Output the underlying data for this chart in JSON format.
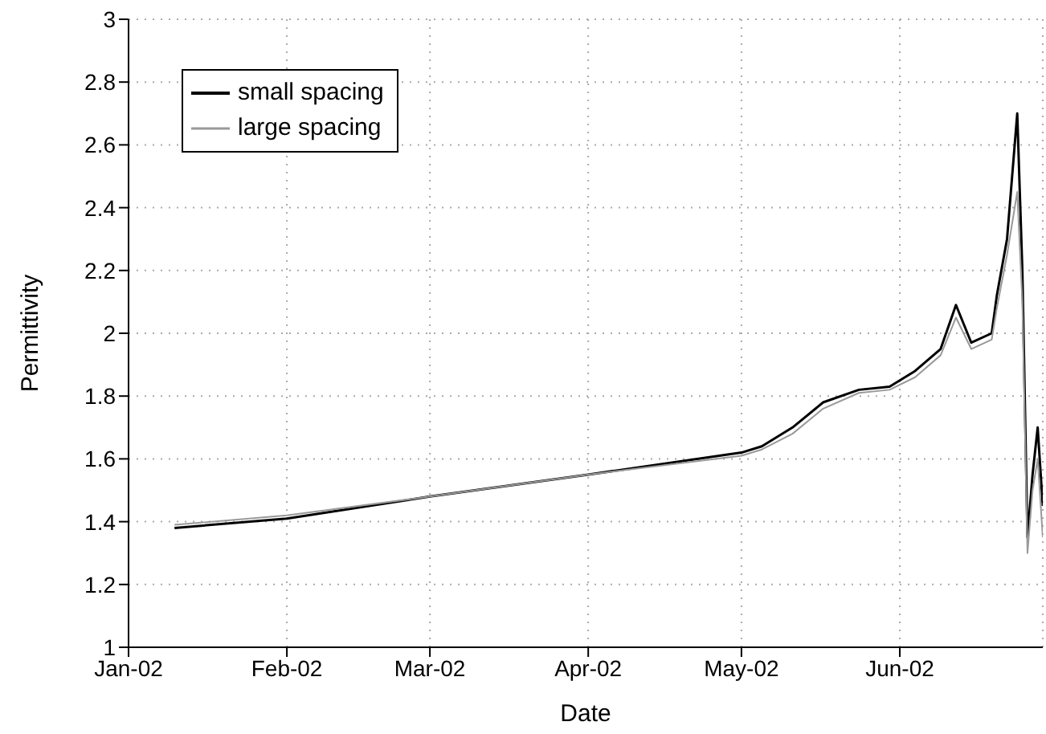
{
  "chart_data": {
    "type": "line",
    "xlabel": "Date",
    "ylabel": "Permittivity",
    "xlim": [
      "2002-01-01",
      "2002-06-29"
    ],
    "xticks": [
      {
        "value": "2002-01-01",
        "label": "Jan-02"
      },
      {
        "value": "2002-02-01",
        "label": "Feb-02"
      },
      {
        "value": "2002-03-01",
        "label": "Mar-02"
      },
      {
        "value": "2002-04-01",
        "label": "Apr-02"
      },
      {
        "value": "2002-05-01",
        "label": "May-02"
      },
      {
        "value": "2002-06-01",
        "label": "Jun-02"
      }
    ],
    "ylim": [
      1,
      3
    ],
    "yticks": [
      1,
      1.2,
      1.4,
      1.6,
      1.8,
      2,
      2.2,
      2.4,
      2.6,
      2.8,
      3
    ],
    "grid": true,
    "legend": "top left",
    "marker": "none",
    "line_style": "solid",
    "series": [
      {
        "name": "small spacing",
        "color": "#000000",
        "x": [
          "2002-01-10",
          "2002-02-01",
          "2002-03-01",
          "2002-04-01",
          "2002-05-01",
          "2002-05-05",
          "2002-05-11",
          "2002-05-17",
          "2002-05-24",
          "2002-05-30",
          "2002-06-04",
          "2002-06-09",
          "2002-06-12",
          "2002-06-15",
          "2002-06-19",
          "2002-06-20",
          "2002-06-22",
          "2002-06-24",
          "2002-06-25",
          "2002-06-26",
          "2002-06-27",
          "2002-06-28",
          "2002-06-29"
        ],
        "values": [
          1.38,
          1.41,
          1.48,
          1.55,
          1.62,
          1.64,
          1.7,
          1.78,
          1.82,
          1.83,
          1.88,
          1.95,
          2.09,
          1.97,
          2.0,
          2.12,
          2.3,
          2.7,
          2.2,
          1.35,
          1.55,
          1.7,
          1.45
        ]
      },
      {
        "name": "large spacing",
        "color": "#999999",
        "x": [
          "2002-01-10",
          "2002-02-01",
          "2002-03-01",
          "2002-04-01",
          "2002-05-01",
          "2002-05-05",
          "2002-05-11",
          "2002-05-17",
          "2002-05-24",
          "2002-05-30",
          "2002-06-04",
          "2002-06-09",
          "2002-06-12",
          "2002-06-15",
          "2002-06-19",
          "2002-06-20",
          "2002-06-22",
          "2002-06-24",
          "2002-06-25",
          "2002-06-26",
          "2002-06-27",
          "2002-06-28",
          "2002-06-29"
        ],
        "values": [
          1.39,
          1.42,
          1.48,
          1.55,
          1.61,
          1.63,
          1.68,
          1.76,
          1.81,
          1.82,
          1.86,
          1.93,
          2.05,
          1.95,
          1.98,
          2.08,
          2.25,
          2.45,
          2.1,
          1.3,
          1.5,
          1.6,
          1.35
        ]
      }
    ]
  }
}
